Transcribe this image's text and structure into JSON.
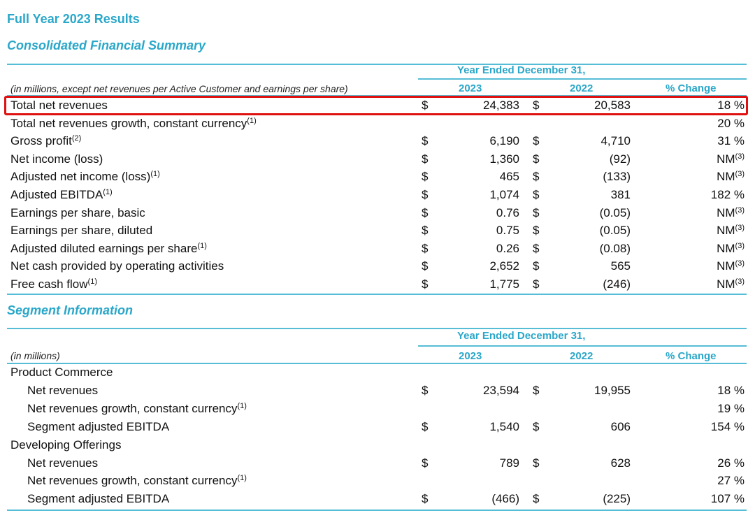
{
  "page_title": "Full Year 2023 Results",
  "summary": {
    "title": "Consolidated Financial Summary",
    "period_header": "Year Ended December 31,",
    "note": "(in millions, except net revenues per Active Customer and earnings per share)",
    "col_2023": "2023",
    "col_2022": "2022",
    "col_change": "% Change",
    "rows": [
      {
        "label": "Total net revenues",
        "sup": "",
        "cur1": "$",
        "v2023": "24,383",
        "cur2": "$",
        "v2022": "20,583",
        "change": "18 %",
        "change_sup": ""
      },
      {
        "label": "Total net revenues growth, constant currency",
        "sup": "(1)",
        "cur1": "",
        "v2023": "",
        "cur2": "",
        "v2022": "",
        "change": "20 %",
        "change_sup": ""
      },
      {
        "label": "Gross profit",
        "sup": "(2)",
        "cur1": "$",
        "v2023": "6,190",
        "cur2": "$",
        "v2022": "4,710",
        "change": "31 %",
        "change_sup": ""
      },
      {
        "label": "Net income (loss)",
        "sup": "",
        "cur1": "$",
        "v2023": "1,360",
        "cur2": "$",
        "v2022": "(92)",
        "change": "NM",
        "change_sup": "(3)"
      },
      {
        "label": "Adjusted net income (loss)",
        "sup": "(1)",
        "cur1": "$",
        "v2023": "465",
        "cur2": "$",
        "v2022": "(133)",
        "change": "NM",
        "change_sup": "(3)"
      },
      {
        "label": "Adjusted EBITDA",
        "sup": "(1)",
        "cur1": "$",
        "v2023": "1,074",
        "cur2": "$",
        "v2022": "381",
        "change": "182 %",
        "change_sup": ""
      },
      {
        "label": "Earnings per share, basic",
        "sup": "",
        "cur1": "$",
        "v2023": "0.76",
        "cur2": "$",
        "v2022": "(0.05)",
        "change": "NM",
        "change_sup": "(3)"
      },
      {
        "label": "Earnings per share, diluted",
        "sup": "",
        "cur1": "$",
        "v2023": "0.75",
        "cur2": "$",
        "v2022": "(0.05)",
        "change": "NM",
        "change_sup": "(3)"
      },
      {
        "label": "Adjusted diluted earnings per share",
        "sup": "(1)",
        "cur1": "$",
        "v2023": "0.26",
        "cur2": "$",
        "v2022": "(0.08)",
        "change": "NM",
        "change_sup": "(3)"
      },
      {
        "label": "Net cash provided by operating activities",
        "sup": "",
        "cur1": "$",
        "v2023": "2,652",
        "cur2": "$",
        "v2022": "565",
        "change": "NM",
        "change_sup": "(3)"
      },
      {
        "label": "Free cash flow",
        "sup": "(1)",
        "cur1": "$",
        "v2023": "1,775",
        "cur2": "$",
        "v2022": "(246)",
        "change": "NM",
        "change_sup": "(3)"
      }
    ]
  },
  "segment": {
    "title": "Segment Information",
    "period_header": "Year Ended December 31,",
    "note": "(in millions)",
    "col_2023": "2023",
    "col_2022": "2022",
    "col_change": "% Change",
    "rows": [
      {
        "label": "Product Commerce",
        "indent": false,
        "sup": "",
        "cur1": "",
        "v2023": "",
        "cur2": "",
        "v2022": "",
        "change": ""
      },
      {
        "label": "Net revenues",
        "indent": true,
        "sup": "",
        "cur1": "$",
        "v2023": "23,594",
        "cur2": "$",
        "v2022": "19,955",
        "change": "18 %"
      },
      {
        "label": "Net revenues growth, constant currency",
        "indent": true,
        "sup": "(1)",
        "cur1": "",
        "v2023": "",
        "cur2": "",
        "v2022": "",
        "change": "19 %"
      },
      {
        "label": "Segment adjusted EBITDA",
        "indent": true,
        "sup": "",
        "cur1": "$",
        "v2023": "1,540",
        "cur2": "$",
        "v2022": "606",
        "change": "154 %"
      },
      {
        "label": "Developing Offerings",
        "indent": false,
        "sup": "",
        "cur1": "",
        "v2023": "",
        "cur2": "",
        "v2022": "",
        "change": ""
      },
      {
        "label": "Net revenues",
        "indent": true,
        "sup": "",
        "cur1": "$",
        "v2023": "789",
        "cur2": "$",
        "v2022": "628",
        "change": "26 %"
      },
      {
        "label": "Net revenues growth, constant currency",
        "indent": true,
        "sup": "(1)",
        "cur1": "",
        "v2023": "",
        "cur2": "",
        "v2022": "",
        "change": "27 %"
      },
      {
        "label": "Segment adjusted EBITDA",
        "indent": true,
        "sup": "",
        "cur1": "$",
        "v2023": "(466)",
        "cur2": "$",
        "v2022": "(225)",
        "change": "107 %"
      }
    ]
  },
  "colors": {
    "accent": "#2aa7c9",
    "highlight": "#e01010"
  }
}
